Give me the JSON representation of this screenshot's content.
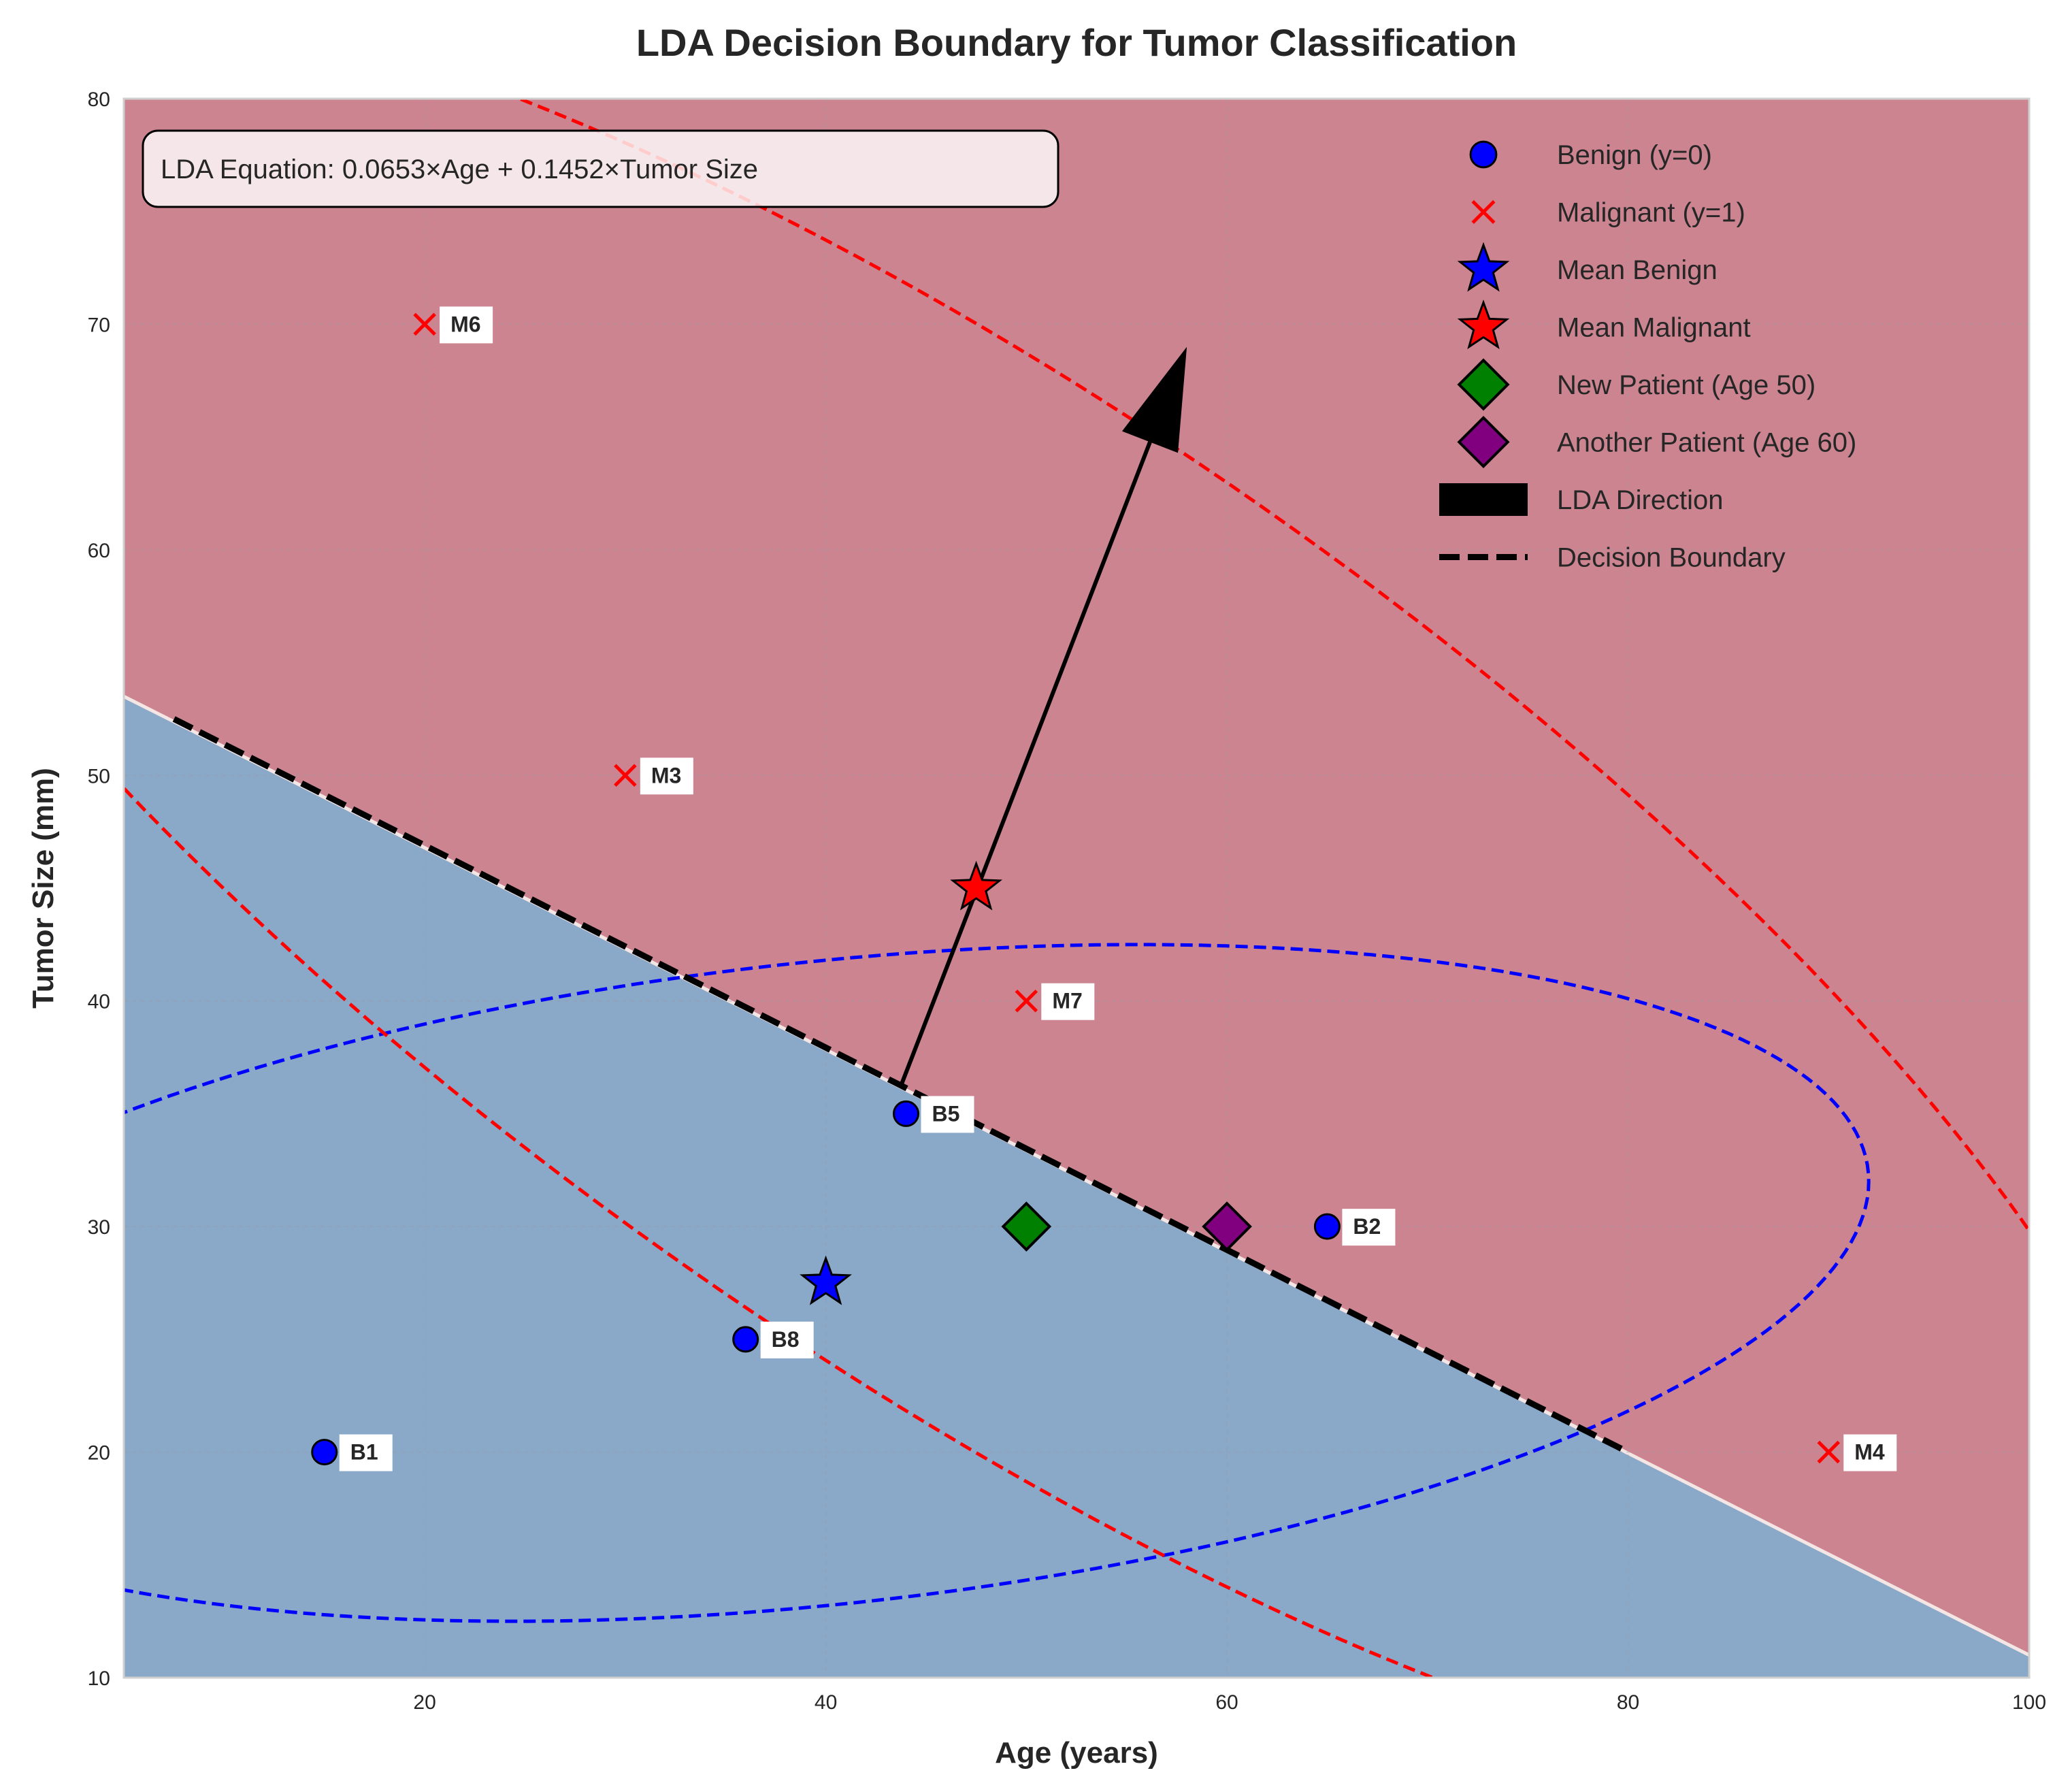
{
  "chart_data": {
    "type": "scatter",
    "title": "LDA Decision Boundary for Tumor Classification",
    "xlabel": "Age (years)",
    "ylabel": "Tumor Size (mm)",
    "xlim": [
      5,
      100
    ],
    "ylim": [
      10,
      80
    ],
    "xticks": [
      20,
      40,
      60,
      80,
      100
    ],
    "yticks": [
      10,
      20,
      30,
      40,
      50,
      60,
      70,
      80
    ],
    "grid": true,
    "legend_position": "top-right",
    "annotation": "LDA Equation: 0.0653×Age + 0.1452×Tumor Size",
    "colors": {
      "benign_region": "#8aa8c7",
      "malignant_region": "#cc8590",
      "benign": "#0000ff",
      "malignant": "#ff0000",
      "new_patient": "#008000",
      "another_patient": "#800080",
      "direction": "#000000"
    },
    "series": [
      {
        "name": "Benign (y=0)",
        "marker": "circle",
        "points": [
          {
            "x": 15,
            "y": 20,
            "label": "B1"
          },
          {
            "x": 65,
            "y": 30,
            "label": "B2"
          },
          {
            "x": 44,
            "y": 35,
            "label": "B5"
          },
          {
            "x": 36,
            "y": 25,
            "label": "B8"
          }
        ]
      },
      {
        "name": "Malignant (y=1)",
        "marker": "x",
        "points": [
          {
            "x": 30,
            "y": 50,
            "label": "M3"
          },
          {
            "x": 90,
            "y": 20,
            "label": "M4"
          },
          {
            "x": 20,
            "y": 70,
            "label": "M6"
          },
          {
            "x": 50,
            "y": 40,
            "label": "M7"
          }
        ]
      },
      {
        "name": "Mean Benign",
        "marker": "star",
        "points": [
          {
            "x": 40,
            "y": 27.5
          }
        ]
      },
      {
        "name": "Mean Malignant",
        "marker": "star",
        "points": [
          {
            "x": 47.5,
            "y": 45
          }
        ]
      },
      {
        "name": "New Patient (Age 50)",
        "marker": "diamond",
        "points": [
          {
            "x": 50,
            "y": 30
          }
        ]
      },
      {
        "name": "Another Patient (Age 60)",
        "marker": "diamond",
        "points": [
          {
            "x": 60,
            "y": 30
          }
        ]
      }
    ],
    "lda_direction": {
      "name": "LDA Direction",
      "from": [
        43.75,
        36.25
      ],
      "to": [
        58,
        69
      ]
    },
    "decision_boundary": {
      "name": "Decision Boundary",
      "points": [
        [
          7.5,
          52.5
        ],
        [
          80,
          20
        ]
      ]
    },
    "region_boundary": [
      [
        5,
        53.5
      ],
      [
        100,
        11
      ]
    ],
    "ellipses": [
      {
        "class": "benign",
        "center": [
          40,
          27.5
        ],
        "sx": 26,
        "sy": 7.5,
        "rho": 0.3
      },
      {
        "class": "malignant",
        "center": [
          47.5,
          45
        ],
        "sx": 30,
        "sy": 20,
        "rho": -0.78
      }
    ]
  }
}
